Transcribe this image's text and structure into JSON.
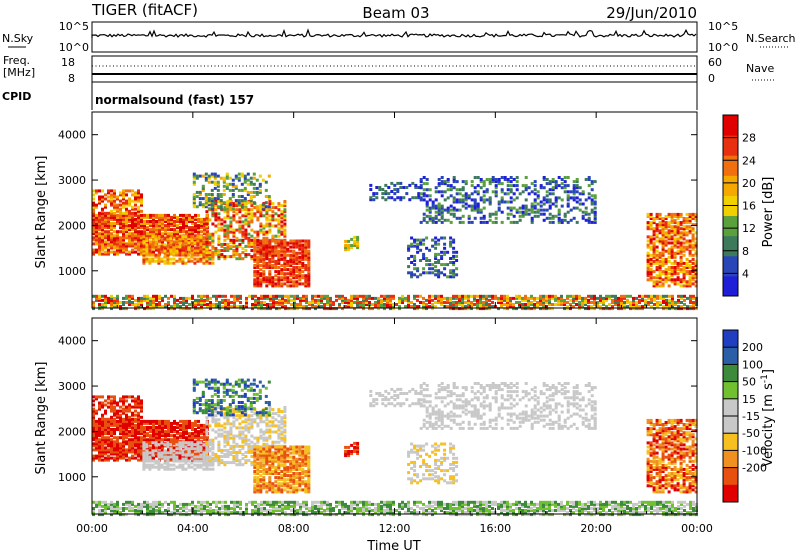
{
  "header": {
    "radar": "TIGER (fitACF)",
    "beam": "Beam 03",
    "date": "29/Jun/2010"
  },
  "status_panels": {
    "nsky_label": "N.Sky",
    "nsky_ticks": [
      "10^5",
      "10^0"
    ],
    "nsearch_label": "N.Search",
    "nsearch_ticks": [
      "10^5",
      "10^0"
    ],
    "freq_label_1": "Freq.",
    "freq_label_2": "[MHz]",
    "freq_ticks": [
      "18",
      "8"
    ],
    "nave_label": "Nave",
    "nave_ticks": [
      "60",
      "0"
    ],
    "cpid_label": "CPID",
    "cpid_value": "normalsound (fast) 157"
  },
  "colors": {
    "power": [
      "#1f1fd8",
      "#2a45b8",
      "#3d7a5c",
      "#5aa03c",
      "#f0d000",
      "#f5a800",
      "#f07010",
      "#e83010",
      "#e00000"
    ],
    "velocity": [
      "#1f3fc0",
      "#2a5fa8",
      "#3c8a3c",
      "#70c030",
      "#c8c8c8",
      "#c8c8c8",
      "#f5c020",
      "#f09020",
      "#e85010",
      "#e00000"
    ],
    "ground": "#808080"
  },
  "chart_data": [
    {
      "type": "heatmap",
      "parameter": "Power",
      "ylabel": "Slant Range [km]",
      "ylim": [
        180,
        4500
      ],
      "xlim": [
        "00:00",
        "24:00"
      ],
      "y_ticks": [
        "1000",
        "2000",
        "3000",
        "4000"
      ],
      "colorbar_label": "Power [dB]",
      "colorbar_ticks": [
        "4",
        "8",
        "12",
        "16",
        "20",
        "24",
        "28"
      ],
      "colorbar_range": [
        0,
        32
      ]
    },
    {
      "type": "heatmap",
      "parameter": "Velocity",
      "ylabel": "Slant Range [km]",
      "xlabel": "Time UT",
      "ylim": [
        180,
        4500
      ],
      "xlim": [
        "00:00",
        "24:00"
      ],
      "x_ticks": [
        "00:00",
        "04:00",
        "08:00",
        "12:00",
        "16:00",
        "20:00",
        "00:00"
      ],
      "y_ticks": [
        "1000",
        "2000",
        "3000",
        "4000"
      ],
      "colorbar_label": "Velocity [m s",
      "colorbar_label_sup": "-1",
      "colorbar_label_end": "]",
      "colorbar_ticks": [
        "200",
        "100",
        "50",
        "15",
        "-15",
        "-50",
        "-100",
        "-200"
      ]
    }
  ]
}
